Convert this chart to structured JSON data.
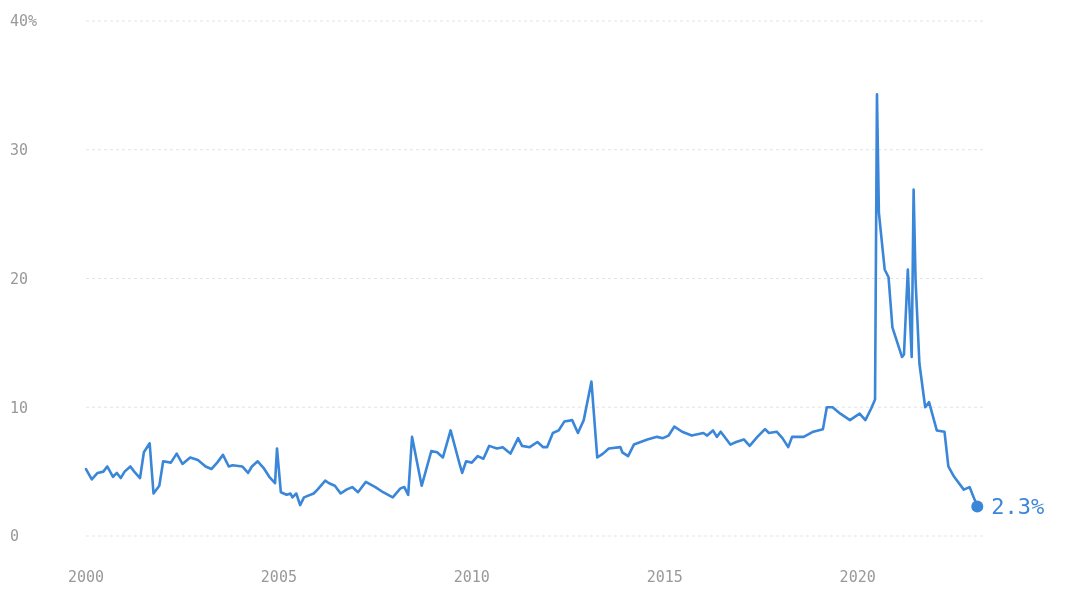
{
  "chart_data": {
    "type": "line",
    "xlim": [
      2000,
      2023.3
    ],
    "xticks": [
      2000,
      2005,
      2010,
      2015,
      2020
    ],
    "ylim": [
      0,
      40
    ],
    "yticks": [
      0,
      10,
      20,
      30,
      {
        "value": 40,
        "label": "40%"
      }
    ],
    "grid": "y",
    "series": [
      {
        "color": "#3a86d8",
        "x": [
          2000.0,
          2000.15,
          2000.3,
          2000.45,
          2000.55,
          2000.7,
          2000.8,
          2000.9,
          2001.0,
          2001.15,
          2001.25,
          2001.4,
          2001.5,
          2001.65,
          2001.75,
          2001.9,
          2002.0,
          2002.2,
          2002.35,
          2002.5,
          2002.7,
          2002.9,
          2003.1,
          2003.25,
          2003.4,
          2003.55,
          2003.7,
          2003.8,
          2004.05,
          2004.2,
          2004.3,
          2004.45,
          2004.6,
          2004.75,
          2004.9,
          2004.95,
          2005.05,
          2005.2,
          2005.3,
          2005.35,
          2005.45,
          2005.55,
          2005.65,
          2005.9,
          2006.0,
          2006.2,
          2006.3,
          2006.45,
          2006.6,
          2006.75,
          2006.9,
          2007.05,
          2007.25,
          2007.5,
          2007.7,
          2007.95,
          2008.15,
          2008.25,
          2008.35,
          2008.45,
          2008.7,
          2008.95,
          2009.1,
          2009.25,
          2009.45,
          2009.7,
          2009.75,
          2009.85,
          2010.0,
          2010.15,
          2010.3,
          2010.45,
          2010.65,
          2010.8,
          2011.0,
          2011.2,
          2011.3,
          2011.5,
          2011.7,
          2011.85,
          2011.95,
          2012.1,
          2012.25,
          2012.4,
          2012.6,
          2012.75,
          2012.9,
          2013.1,
          2013.25,
          2013.4,
          2013.55,
          2013.85,
          2013.9,
          2014.05,
          2014.2,
          2014.55,
          2014.8,
          2014.95,
          2015.1,
          2015.25,
          2015.45,
          2015.7,
          2016.0,
          2016.1,
          2016.25,
          2016.35,
          2016.45,
          2016.7,
          2016.85,
          2017.05,
          2017.2,
          2017.4,
          2017.6,
          2017.7,
          2017.9,
          2018.05,
          2018.2,
          2018.3,
          2018.6,
          2018.85,
          2019.1,
          2019.2,
          2019.35,
          2019.55,
          2019.8,
          2020.05,
          2020.2,
          2020.35,
          2020.45,
          2020.5,
          2020.55,
          2020.7,
          2020.8,
          2020.9,
          2021.15,
          2021.2,
          2021.3,
          2021.35,
          2021.4,
          2021.45,
          2021.5,
          2021.6,
          2021.75,
          2021.85,
          2022.05,
          2022.25,
          2022.35,
          2022.5,
          2022.75,
          2022.9,
          2023.1
        ],
        "values": [
          5.2,
          4.4,
          4.9,
          5.0,
          5.4,
          4.6,
          4.9,
          4.5,
          5.0,
          5.4,
          5.0,
          4.5,
          6.5,
          7.2,
          3.3,
          3.9,
          5.8,
          5.7,
          6.4,
          5.6,
          6.1,
          5.9,
          5.4,
          5.2,
          5.7,
          6.3,
          5.4,
          5.5,
          5.4,
          4.9,
          5.4,
          5.8,
          5.3,
          4.6,
          4.1,
          6.8,
          3.4,
          3.2,
          3.3,
          3.0,
          3.3,
          2.4,
          3.0,
          3.3,
          3.6,
          4.3,
          4.1,
          3.9,
          3.3,
          3.6,
          3.8,
          3.4,
          4.2,
          3.8,
          3.4,
          3.0,
          3.7,
          3.8,
          3.2,
          7.7,
          3.9,
          6.6,
          6.5,
          6.1,
          8.2,
          5.4,
          4.9,
          5.8,
          5.7,
          6.2,
          6.0,
          7.0,
          6.8,
          6.9,
          6.4,
          7.6,
          7.0,
          6.9,
          7.3,
          6.9,
          6.9,
          8.0,
          8.2,
          8.9,
          9.0,
          8.0,
          9.0,
          12.0,
          6.1,
          6.4,
          6.8,
          6.9,
          6.5,
          6.2,
          7.1,
          7.5,
          7.7,
          7.6,
          7.8,
          8.5,
          8.1,
          7.8,
          8.0,
          7.8,
          8.2,
          7.7,
          8.1,
          7.1,
          7.3,
          7.5,
          7.0,
          7.7,
          8.3,
          8.0,
          8.1,
          7.6,
          6.9,
          7.7,
          7.7,
          8.1,
          8.3,
          10.0,
          10.0,
          9.5,
          9.0,
          9.5,
          9.0,
          9.9,
          10.6,
          34.3,
          25.1,
          20.7,
          20.1,
          16.2,
          13.9,
          14.1,
          20.7,
          17.3,
          13.9,
          26.9,
          19.9,
          13.4,
          10.0,
          10.4,
          8.2,
          8.1,
          5.4,
          4.6,
          3.6,
          3.8,
          2.3
        ],
        "value_labels": [
          null,
          null,
          null,
          null,
          null,
          null,
          null,
          null,
          null,
          null,
          null,
          null,
          null,
          null,
          null,
          null,
          null,
          null,
          null,
          null,
          null,
          null,
          null,
          null,
          null,
          null,
          null,
          null,
          null,
          null,
          null,
          null,
          null,
          null,
          null,
          null,
          null,
          null,
          null,
          null,
          null,
          null,
          null,
          null,
          null,
          null,
          null,
          null,
          null,
          null,
          null,
          null,
          null,
          null,
          null,
          null,
          null,
          null,
          null,
          null,
          null,
          null,
          null,
          null,
          null,
          null,
          null,
          null,
          null,
          null,
          null,
          null,
          null,
          null,
          null,
          null,
          null,
          null,
          null,
          null,
          null,
          null,
          null,
          null,
          null,
          null,
          null,
          null,
          null,
          null,
          null,
          null,
          null,
          null,
          null,
          null,
          null,
          null,
          null,
          null,
          null,
          null,
          null,
          null,
          null,
          null,
          null,
          null,
          null,
          null,
          null,
          null,
          null,
          null,
          null,
          null,
          null,
          null,
          null,
          null,
          null,
          null,
          null,
          null,
          null,
          null,
          null,
          null,
          null,
          null,
          null,
          null,
          null,
          null,
          null,
          null,
          null,
          null,
          null,
          null,
          null,
          null,
          null,
          null,
          null,
          null,
          null,
          null,
          null,
          null,
          "2.3%"
        ]
      }
    ]
  }
}
